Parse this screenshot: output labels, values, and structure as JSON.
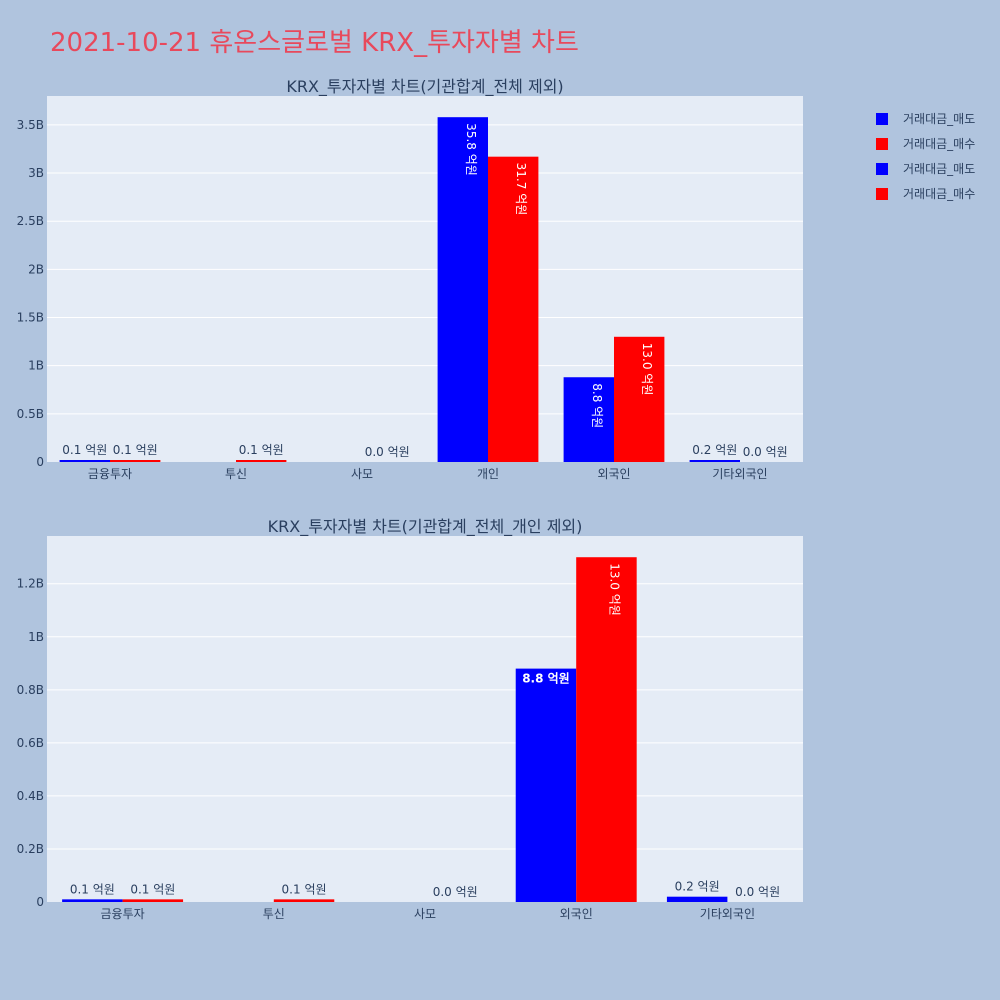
{
  "page": {
    "title": "2021-10-21 휴온스글로벌 KRX_투자자별 차트"
  },
  "legend": {
    "items": [
      {
        "label": "거래대금_매도",
        "color": "#0000ff"
      },
      {
        "label": "거래대금_매수",
        "color": "#ff0000"
      },
      {
        "label": "거래대금_매도",
        "color": "#0000ff"
      },
      {
        "label": "거래대금_매수",
        "color": "#ff0000"
      }
    ]
  },
  "chart_data": [
    {
      "type": "bar",
      "title": "KRX_투자자별 차트(기관합계_전체 제외)",
      "categories": [
        "금융투자",
        "투신",
        "사모",
        "개인",
        "외국인",
        "기타외국인"
      ],
      "ylim": [
        0,
        3.8
      ],
      "yticks": [
        0,
        0.5,
        1,
        1.5,
        2,
        2.5,
        3,
        3.5
      ],
      "ytick_labels": [
        "0",
        "0.5B",
        "1B",
        "1.5B",
        "2B",
        "2.5B",
        "3B",
        "3.5B"
      ],
      "grid": true,
      "series": [
        {
          "name": "거래대금_매도",
          "color": "#0000ff",
          "values": [
            0.01,
            0,
            0,
            3.58,
            0.88,
            0.02
          ],
          "labels": [
            "0.1 억원",
            "",
            "",
            "35.8 억원",
            "8.8 억원",
            "0.2 억원"
          ]
        },
        {
          "name": "거래대금_매수",
          "color": "#ff0000",
          "values": [
            0.01,
            0.01,
            0.0,
            3.17,
            1.3,
            0.0
          ],
          "labels": [
            "0.1 억원",
            "0.1 억원",
            "0.0 억원",
            "31.7 억원",
            "13.0 억원",
            "0.0 억원"
          ]
        }
      ]
    },
    {
      "type": "bar",
      "title": "KRX_투자자별 차트(기관합계_전체_개인 제외)",
      "categories": [
        "금융투자",
        "투신",
        "사모",
        "외국인",
        "기타외국인"
      ],
      "ylim": [
        0,
        1.38
      ],
      "yticks": [
        0,
        0.2,
        0.4,
        0.6,
        0.8,
        1,
        1.2
      ],
      "ytick_labels": [
        "0",
        "0.2B",
        "0.4B",
        "0.6B",
        "0.8B",
        "1B",
        "1.2B"
      ],
      "grid": true,
      "series": [
        {
          "name": "거래대금_매도",
          "color": "#0000ff",
          "values": [
            0.01,
            0,
            0,
            0.88,
            0.02
          ],
          "labels": [
            "0.1 억원",
            "",
            "",
            "8.8 억원",
            "0.2 억원"
          ]
        },
        {
          "name": "거래대금_매수",
          "color": "#ff0000",
          "values": [
            0.01,
            0.01,
            0.0,
            1.3,
            0.0
          ],
          "labels": [
            "0.1 억원",
            "0.1 억원",
            "0.0 억원",
            "13.0 억원",
            "0.0 억원"
          ]
        }
      ]
    }
  ]
}
